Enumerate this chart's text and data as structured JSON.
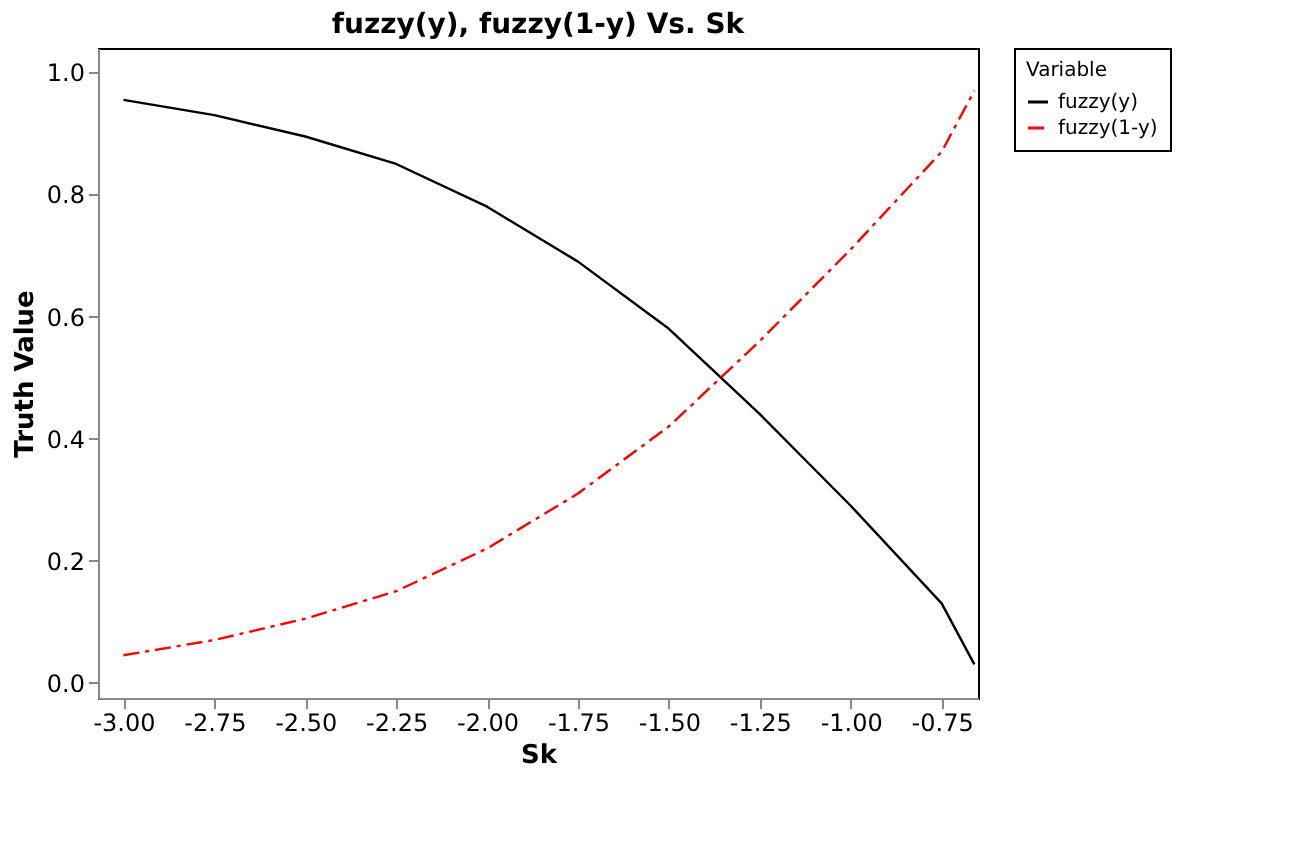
{
  "chart_data": {
    "type": "line",
    "title": "fuzzy(y), fuzzy(1-y) Vs. Sk",
    "xlabel": "Sk",
    "ylabel": "Truth Value",
    "legend_title": "Variable",
    "legend": "right",
    "x": [
      -3.0,
      -2.75,
      -2.5,
      -2.25,
      -2.0,
      -1.75,
      -1.5,
      -1.25,
      -1.0,
      -0.75,
      -0.66
    ],
    "series": [
      {
        "name": "fuzzy(y)",
        "color": "#000000",
        "line_style": "solid",
        "values": [
          0.955,
          0.93,
          0.895,
          0.85,
          0.78,
          0.69,
          0.58,
          0.44,
          0.29,
          0.13,
          0.03
        ]
      },
      {
        "name": "fuzzy(1-y)",
        "color": "#ff0000",
        "line_style": "dashed",
        "values": [
          0.045,
          0.07,
          0.105,
          0.15,
          0.22,
          0.31,
          0.42,
          0.56,
          0.71,
          0.87,
          0.97
        ]
      }
    ],
    "xlim": [
      -3.07,
      -0.65
    ],
    "xticks": [
      {
        "value": -3.0,
        "label": "-3.00"
      },
      {
        "value": -2.75,
        "label": "-2.75"
      },
      {
        "value": -2.5,
        "label": "-2.50"
      },
      {
        "value": -2.25,
        "label": "-2.25"
      },
      {
        "value": -2.0,
        "label": "-2.00"
      },
      {
        "value": -1.75,
        "label": "-1.75"
      },
      {
        "value": -1.5,
        "label": "-1.50"
      },
      {
        "value": -1.25,
        "label": "-1.25"
      },
      {
        "value": -1.0,
        "label": "-1.00"
      },
      {
        "value": -0.75,
        "label": "-0.75"
      }
    ],
    "ylim": [
      -0.025,
      1.04
    ],
    "yticks": [
      {
        "value": 0,
        "label": "0.0"
      },
      {
        "value": 0.2,
        "label": "0.2"
      },
      {
        "value": 0.4,
        "label": "0.4"
      },
      {
        "value": 0.6,
        "label": "0.6"
      },
      {
        "value": 0.8,
        "label": "0.8"
      },
      {
        "value": 1.0,
        "label": "1.0"
      }
    ],
    "grid": false,
    "marker": "none"
  }
}
